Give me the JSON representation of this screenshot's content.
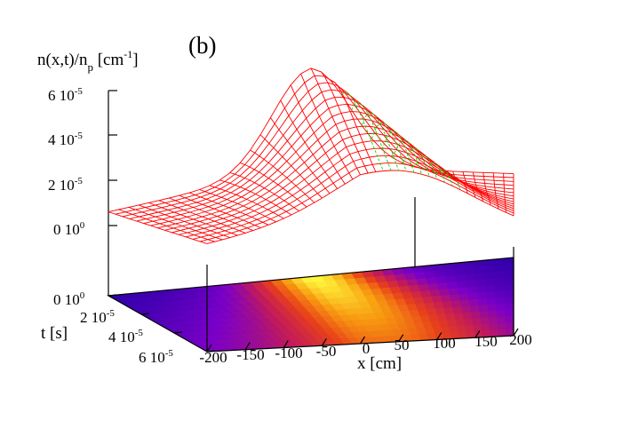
{
  "chart_data": {
    "type": "surface",
    "panel_label": "(b)",
    "zlabel": "n(x,t)/n",
    "zlabel_sub": "p",
    "zlabel_unit_pre": " [cm",
    "zlabel_unit_sup": "-1",
    "zlabel_unit_post": "]",
    "xlabel": "x [cm]",
    "ylabel": "t [s]",
    "xlim": [
      -200,
      200
    ],
    "ylim": [
      0,
      6e-05
    ],
    "zlim": [
      0,
      6e-05
    ],
    "x_ticks": [
      "-200",
      "-150",
      "-100",
      "-50",
      "0",
      "50",
      "100",
      "150",
      "200"
    ],
    "z_ticks": [
      {
        "mant": "0 10",
        "exp": "0"
      },
      {
        "mant": "2 10",
        "exp": "-5"
      },
      {
        "mant": "4 10",
        "exp": "-5"
      },
      {
        "mant": "6 10",
        "exp": "-5"
      }
    ],
    "base_ticks": [
      {
        "mant": "0 10",
        "exp": "0"
      },
      {
        "mant": "2 10",
        "exp": "-5"
      },
      {
        "mant": "4 10",
        "exp": "-5"
      },
      {
        "mant": "6 10",
        "exp": "-5"
      }
    ],
    "surface_color_top": "#ff0000",
    "surface_color_bottom": "#00dd00",
    "palette": [
      "#2a00a8",
      "#7a00c8",
      "#c21a5a",
      "#e8401a",
      "#f89a10",
      "#ffff40"
    ],
    "peak_value": 4e-05,
    "peak_x": 0,
    "background_value": 1.5e-05
  }
}
